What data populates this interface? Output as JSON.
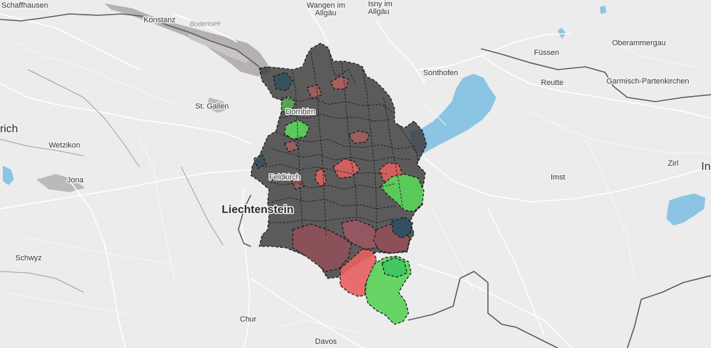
{
  "map": {
    "labels": {
      "schaffhausen": "Schaffhausen",
      "konstanz": "Konstanz",
      "bodensee": "Bodensee",
      "wangen": [
        "Wangen im",
        "Allgäu"
      ],
      "isny": [
        "Isny im",
        "Allgäu"
      ],
      "fuessen": "Füssen",
      "oberammergau": "Oberammergau",
      "sonthofen": "Sonthofen",
      "reutte": "Reutte",
      "garmisch": "Garmisch-Partenkirchen",
      "st_gallen": "St. Gallen",
      "dornbirn": "Dornbirn",
      "zurich_partial": "rich",
      "wetzikon": "Wetzikon",
      "jona": "Jona",
      "feldkirch": "Feldkirch",
      "imst": "Imst",
      "zirl": "Zirl",
      "innsbruck_partial": "In",
      "liechtenstein": "Liechtenstein",
      "schwyz": "Schwyz",
      "chur": "Chur",
      "davos": "Davos"
    },
    "colors": {
      "background": "#ececec",
      "lake": "#8cc4e4",
      "road": "#ffffff",
      "border": "#5a5a5a",
      "urban": "#b4b0b4",
      "region_dark": "#3a3a3a",
      "region_red": "#e86060",
      "region_green": "#5ad25a",
      "region_mauve": "#905058",
      "region_teal": "#2e5060"
    }
  }
}
